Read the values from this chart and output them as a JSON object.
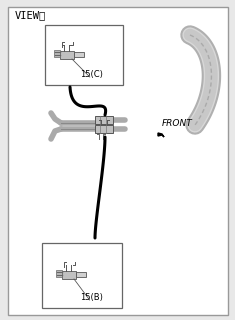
{
  "title": "VIEWⓔ",
  "bg_color": "#ffffff",
  "border_color": "#888888",
  "label_top_box": "15(C)",
  "label_bot_box": "15(B)",
  "front_label": "FRONT",
  "fig_bg": "#e8e8e8",
  "outer_bg": "#ffffff"
}
